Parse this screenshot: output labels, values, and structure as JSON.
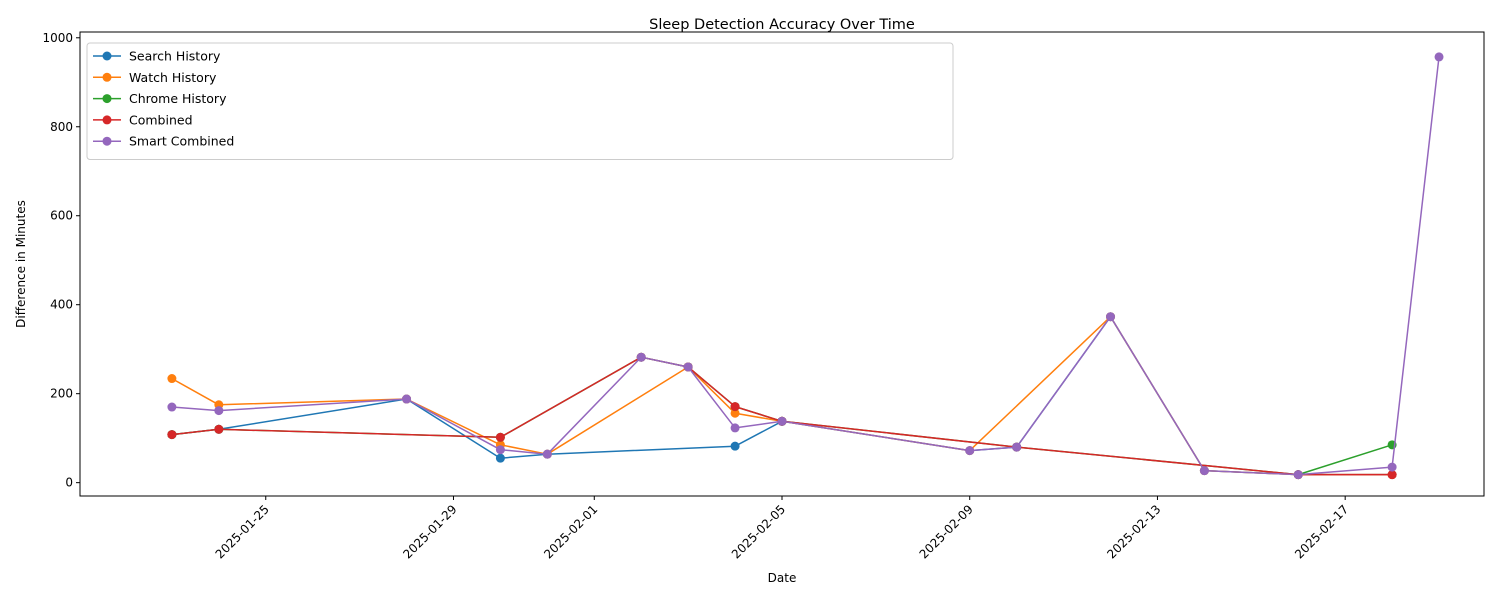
{
  "chart_data": {
    "type": "line",
    "title": "Sleep Detection Accuracy Over Time",
    "xlabel": "Date",
    "ylabel": "Difference in Minutes",
    "x_ticks": [
      "2025-01-25",
      "2025-01-29",
      "2025-02-01",
      "2025-02-05",
      "2025-02-09",
      "2025-02-13",
      "2025-02-17"
    ],
    "y_ticks": [
      0,
      200,
      400,
      600,
      800,
      1000
    ],
    "xlim": [
      "2025-01-22",
      "2025-02-19"
    ],
    "ylim": [
      -30,
      1000
    ],
    "grid": false,
    "legend_position": "top-left",
    "series": [
      {
        "name": "Search History",
        "color": "#1f77b4",
        "points": [
          [
            "2025-01-23",
            108
          ],
          [
            "2025-01-24",
            120
          ],
          [
            "2025-01-28",
            188
          ],
          [
            "2025-01-30",
            55
          ],
          [
            "2025-01-31",
            64
          ],
          [
            "2025-02-04",
            82
          ],
          [
            "2025-02-05",
            138
          ],
          [
            "2025-02-09",
            72
          ],
          [
            "2025-02-10",
            80
          ],
          [
            "2025-02-12",
            373
          ],
          [
            "2025-02-14",
            27
          ],
          [
            "2025-02-16",
            18
          ],
          [
            "2025-02-18",
            18
          ]
        ]
      },
      {
        "name": "Watch History",
        "color": "#ff7f0e",
        "points": [
          [
            "2025-01-23",
            234
          ],
          [
            "2025-01-24",
            175
          ],
          [
            "2025-01-28",
            188
          ],
          [
            "2025-01-30",
            85
          ],
          [
            "2025-01-31",
            64
          ],
          [
            "2025-02-03",
            260
          ],
          [
            "2025-02-04",
            156
          ],
          [
            "2025-02-05",
            138
          ],
          [
            "2025-02-09",
            72
          ],
          [
            "2025-02-12",
            373
          ],
          [
            "2025-02-14",
            27
          ],
          [
            "2025-02-16",
            18
          ],
          [
            "2025-02-18",
            18
          ]
        ]
      },
      {
        "name": "Chrome History",
        "color": "#2ca02c",
        "points": [
          [
            "2025-01-23",
            108
          ],
          [
            "2025-01-24",
            120
          ],
          [
            "2025-01-30",
            102
          ],
          [
            "2025-02-02",
            282
          ],
          [
            "2025-02-03",
            260
          ],
          [
            "2025-02-04",
            171
          ],
          [
            "2025-02-05",
            138
          ],
          [
            "2025-02-10",
            80
          ],
          [
            "2025-02-16",
            18
          ],
          [
            "2025-02-18",
            85
          ]
        ]
      },
      {
        "name": "Combined",
        "color": "#d62728",
        "points": [
          [
            "2025-01-23",
            108
          ],
          [
            "2025-01-24",
            120
          ],
          [
            "2025-01-30",
            102
          ],
          [
            "2025-02-02",
            282
          ],
          [
            "2025-02-03",
            260
          ],
          [
            "2025-02-04",
            171
          ],
          [
            "2025-02-05",
            138
          ],
          [
            "2025-02-10",
            80
          ],
          [
            "2025-02-16",
            18
          ],
          [
            "2025-02-18",
            18
          ]
        ]
      },
      {
        "name": "Smart Combined",
        "color": "#9467bd",
        "points": [
          [
            "2025-01-23",
            170
          ],
          [
            "2025-01-24",
            162
          ],
          [
            "2025-01-28",
            188
          ],
          [
            "2025-01-30",
            74
          ],
          [
            "2025-01-31",
            64
          ],
          [
            "2025-02-02",
            282
          ],
          [
            "2025-02-03",
            260
          ],
          [
            "2025-02-04",
            123
          ],
          [
            "2025-02-05",
            138
          ],
          [
            "2025-02-09",
            72
          ],
          [
            "2025-02-10",
            80
          ],
          [
            "2025-02-12",
            373
          ],
          [
            "2025-02-14",
            27
          ],
          [
            "2025-02-16",
            18
          ],
          [
            "2025-02-18",
            35
          ],
          [
            "2025-02-19",
            957
          ]
        ]
      }
    ]
  }
}
